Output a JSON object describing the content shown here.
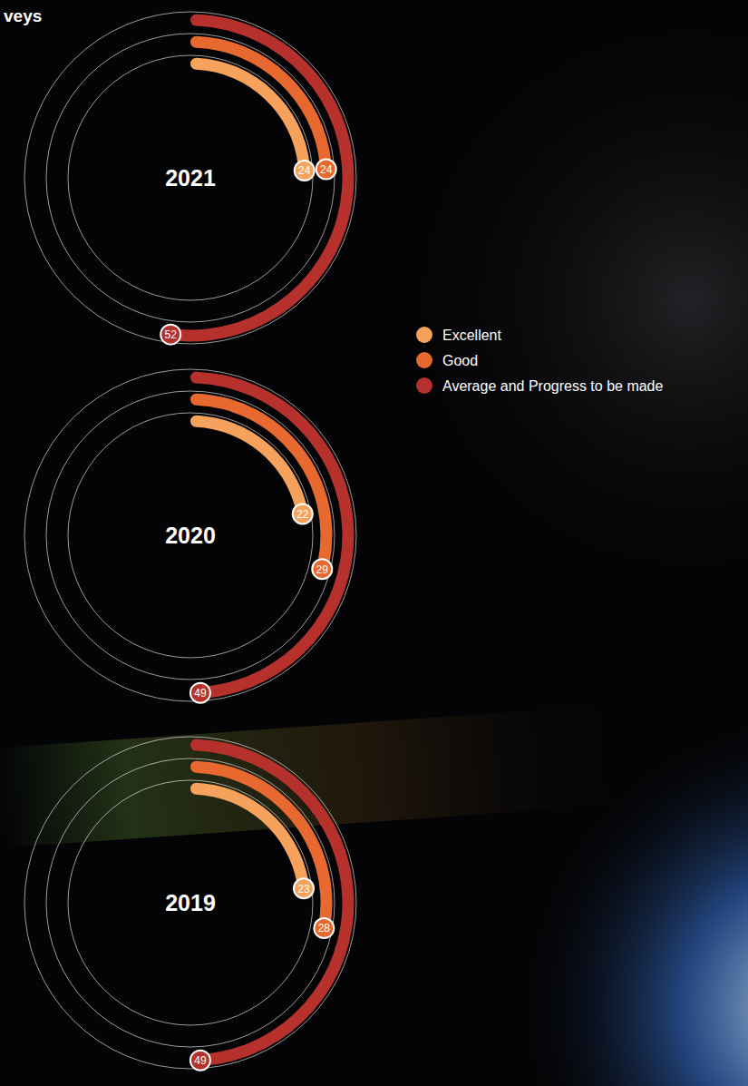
{
  "title": "veys",
  "chart_data": [
    {
      "type": "radial_bar",
      "title": "2021",
      "categories": [
        "Excellent",
        "Good",
        "Average and Progress to be made"
      ],
      "values": [
        24,
        24,
        52
      ],
      "colors": [
        "#f7a25c",
        "#e8692f",
        "#b7312c"
      ],
      "data_labels": true,
      "legend": "right"
    },
    {
      "type": "radial_bar",
      "title": "2020",
      "categories": [
        "Excellent",
        "Good",
        "Average and Progress to be made"
      ],
      "values": [
        22,
        29,
        49
      ],
      "colors": [
        "#f7a25c",
        "#e8692f",
        "#b7312c"
      ],
      "data_labels": true
    },
    {
      "type": "radial_bar",
      "title": "2019",
      "categories": [
        "Excellent",
        "Good",
        "Average and Progress to be made"
      ],
      "values": [
        23,
        28,
        49
      ],
      "colors": [
        "#f7a25c",
        "#e8692f",
        "#b7312c"
      ],
      "data_labels": true
    }
  ]
}
